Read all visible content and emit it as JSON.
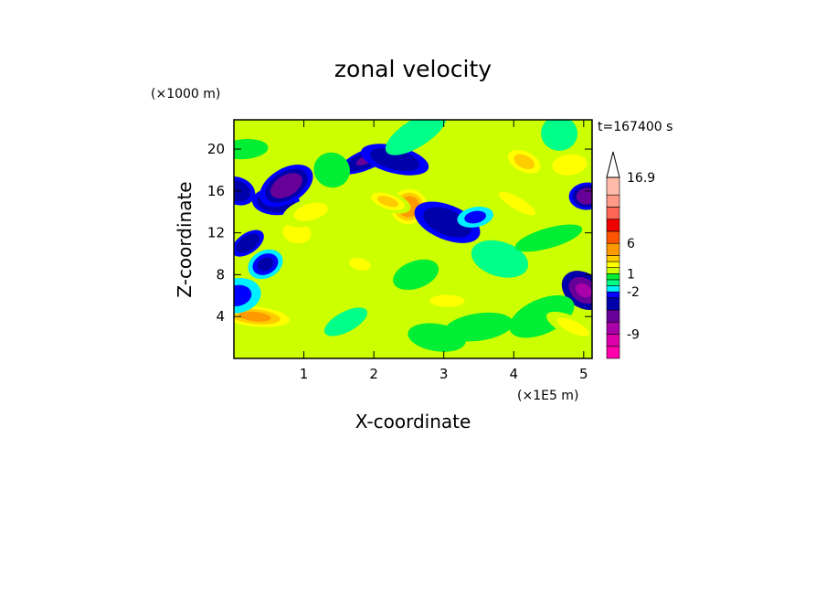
{
  "chart_data": {
    "type": "heatmap",
    "title": "zonal velocity",
    "xlabel": "X-coordinate",
    "ylabel": "Z-coordinate",
    "x_unit": "(×1E5 m)",
    "y_unit": "(×1000 m)",
    "time_label": "t=167400 s",
    "xlim": [
      0,
      5.12
    ],
    "ylim": [
      0,
      22.8
    ],
    "x_ticks": [
      "1",
      "2",
      "3",
      "4",
      "5"
    ],
    "y_ticks": [
      "4",
      "8",
      "12",
      "16",
      "20"
    ],
    "colorbar": {
      "labels": [
        "16.9",
        "6",
        "1",
        "-2",
        "-9"
      ],
      "levels": [
        -13,
        -11,
        -9,
        -7,
        -5,
        -3,
        -2,
        -1,
        0,
        1,
        2,
        3,
        4,
        6,
        8,
        10,
        12,
        14,
        16.9
      ],
      "colors": [
        "#ff00aa",
        "#dd00aa",
        "#aa00aa",
        "#660099",
        "#0000aa",
        "#0000ff",
        "#00eeff",
        "#00ff88",
        "#00ee33",
        "#ccff00",
        "#ffff00",
        "#ffcc00",
        "#ff9900",
        "#ff5500",
        "#ee0000",
        "#ff6655",
        "#ff9988",
        "#ffbbaa"
      ]
    },
    "features": [
      {
        "x": 0.2,
        "z": 11,
        "value": -6
      },
      {
        "x": 0.6,
        "z": 15,
        "value": -7
      },
      {
        "x": 0.75,
        "z": 16.5,
        "value": -8
      },
      {
        "x": 0.3,
        "z": 4,
        "value": 6
      },
      {
        "x": 0.45,
        "z": 9,
        "value": -5
      },
      {
        "x": 0.9,
        "z": 12,
        "value": 4
      },
      {
        "x": 1.9,
        "z": 19,
        "value": -7
      },
      {
        "x": 2.3,
        "z": 19,
        "value": -6
      },
      {
        "x": 2.5,
        "z": 14.5,
        "value": 7
      },
      {
        "x": 2.2,
        "z": 15,
        "value": 5
      },
      {
        "x": 1.1,
        "z": 14,
        "value": 3
      },
      {
        "x": 3.05,
        "z": 13,
        "value": -6
      },
      {
        "x": 3.45,
        "z": 13.5,
        "value": -4
      },
      {
        "x": 4.15,
        "z": 18.8,
        "value": 5
      },
      {
        "x": 4.8,
        "z": 18.5,
        "value": 4
      },
      {
        "x": 4.05,
        "z": 14.8,
        "value": 3
      },
      {
        "x": 5.05,
        "z": 15.5,
        "value": -8
      },
      {
        "x": 5.0,
        "z": 6.5,
        "value": -9
      },
      {
        "x": 3.05,
        "z": 5.5,
        "value": 3
      },
      {
        "x": 2.6,
        "z": 21.5,
        "value": -2
      },
      {
        "x": 4.65,
        "z": 21.5,
        "value": -2
      },
      {
        "x": 1.6,
        "z": 3.5,
        "value": -2
      },
      {
        "x": 2.9,
        "z": 2,
        "value": 1
      },
      {
        "x": 4.4,
        "z": 4,
        "value": 2
      },
      {
        "x": 1.8,
        "z": 9,
        "value": 3
      },
      {
        "x": 2.6,
        "z": 8,
        "value": 2
      },
      {
        "x": 3.8,
        "z": 9.5,
        "value": -1
      },
      {
        "x": 4.5,
        "z": 11.5,
        "value": 2
      },
      {
        "x": 0.05,
        "z": 16,
        "value": -6
      },
      {
        "x": 0.05,
        "z": 6,
        "value": -3
      },
      {
        "x": 4.85,
        "z": 3,
        "value": 4
      },
      {
        "x": 3.5,
        "z": 3,
        "value": 0
      },
      {
        "x": 1.4,
        "z": 18,
        "value": 1
      },
      {
        "x": 0.15,
        "z": 20,
        "value": 1.5
      }
    ]
  }
}
